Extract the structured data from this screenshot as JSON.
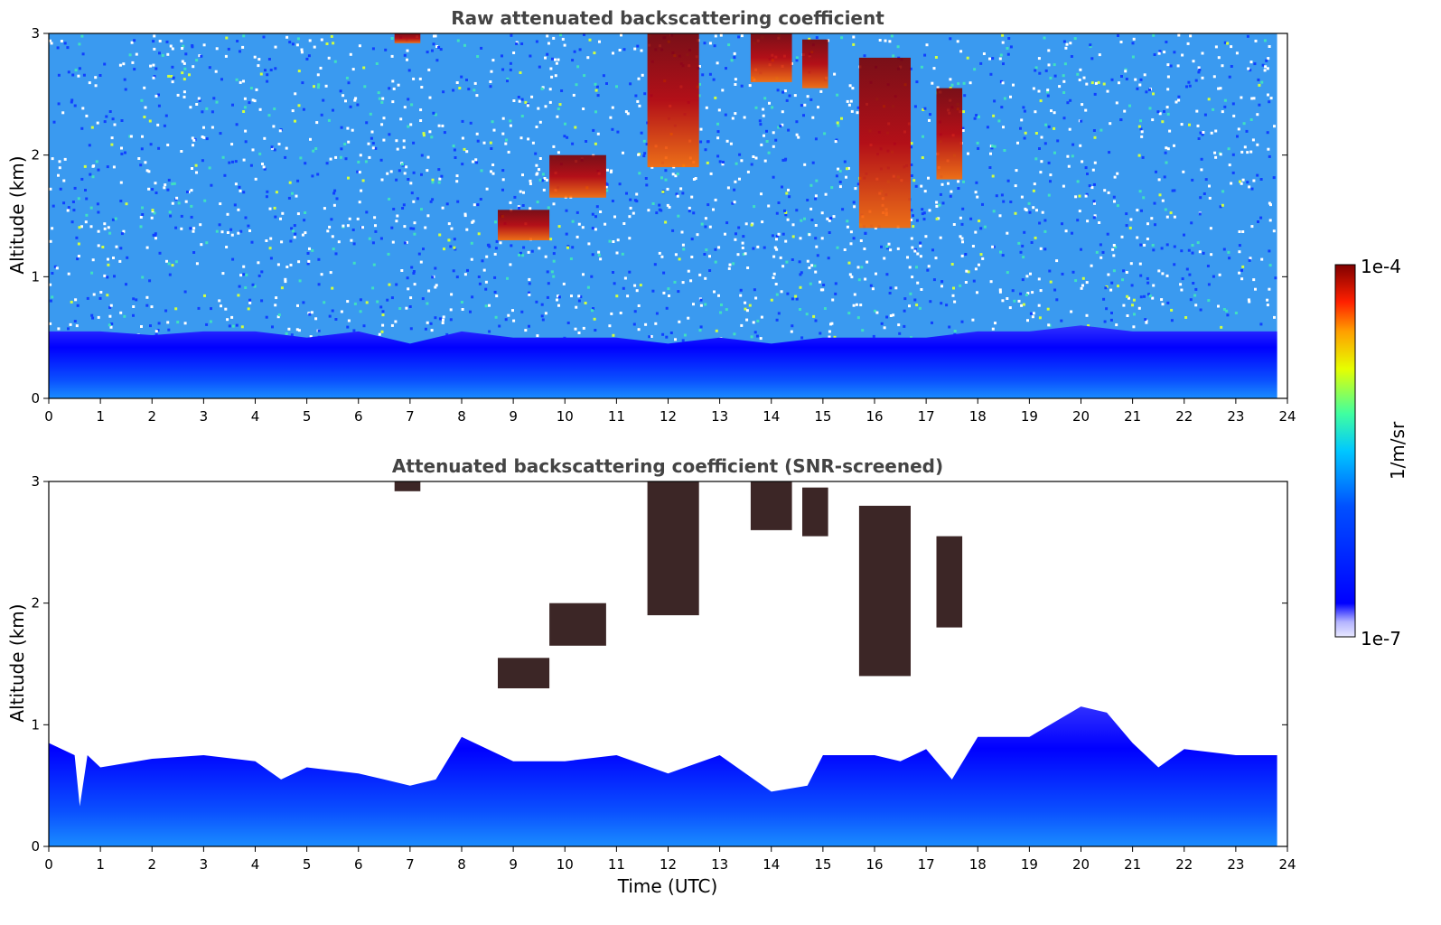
{
  "chart_data": [
    {
      "type": "heatmap",
      "title": "Raw attenuated backscattering coefficient",
      "xlabel": "",
      "ylabel": "Altitude (km)",
      "xlim": [
        0,
        24
      ],
      "ylim": [
        0,
        3
      ],
      "x_ticks": [
        "0",
        "1",
        "2",
        "3",
        "4",
        "5",
        "6",
        "7",
        "8",
        "9",
        "10",
        "11",
        "12",
        "13",
        "14",
        "15",
        "16",
        "17",
        "18",
        "19",
        "20",
        "21",
        "22",
        "23",
        "24"
      ],
      "y_ticks": [
        "0",
        "1",
        "2",
        "3"
      ],
      "data_coverage_x": [
        0,
        23.8
      ],
      "boundary_layer_top_km": [
        [
          0,
          0.55
        ],
        [
          1,
          0.55
        ],
        [
          2,
          0.52
        ],
        [
          3,
          0.55
        ],
        [
          4,
          0.55
        ],
        [
          5,
          0.5
        ],
        [
          6,
          0.55
        ],
        [
          7,
          0.45
        ],
        [
          8,
          0.55
        ],
        [
          9,
          0.5
        ],
        [
          10,
          0.5
        ],
        [
          11,
          0.5
        ],
        [
          12,
          0.45
        ],
        [
          13,
          0.5
        ],
        [
          14,
          0.45
        ],
        [
          15,
          0.5
        ],
        [
          16,
          0.5
        ],
        [
          17,
          0.5
        ],
        [
          18,
          0.55
        ],
        [
          19,
          0.55
        ],
        [
          20,
          0.6
        ],
        [
          21,
          0.55
        ],
        [
          22,
          0.55
        ],
        [
          23,
          0.55
        ],
        [
          23.8,
          0.55
        ]
      ],
      "cloud_features": [
        {
          "t_start": 6.7,
          "t_end": 7.2,
          "alt_bottom_km": 2.92,
          "alt_top_km": 3.0
        },
        {
          "t_start": 8.7,
          "t_end": 9.7,
          "alt_bottom_km": 1.3,
          "alt_top_km": 1.55
        },
        {
          "t_start": 9.7,
          "t_end": 10.8,
          "alt_bottom_km": 1.65,
          "alt_top_km": 2.0
        },
        {
          "t_start": 11.6,
          "t_end": 12.6,
          "alt_bottom_km": 1.9,
          "alt_top_km": 3.0
        },
        {
          "t_start": 13.6,
          "t_end": 14.4,
          "alt_bottom_km": 2.6,
          "alt_top_km": 3.0
        },
        {
          "t_start": 14.6,
          "t_end": 15.1,
          "alt_bottom_km": 2.55,
          "alt_top_km": 2.95
        },
        {
          "t_start": 15.7,
          "t_end": 16.7,
          "alt_bottom_km": 1.4,
          "alt_top_km": 2.8
        },
        {
          "t_start": 17.2,
          "t_end": 17.7,
          "alt_bottom_km": 1.8,
          "alt_top_km": 2.55
        }
      ]
    },
    {
      "type": "heatmap",
      "title": "Attenuated backscattering coefficient (SNR-screened)",
      "xlabel": "Time (UTC)",
      "ylabel": "Altitude (km)",
      "xlim": [
        0,
        24
      ],
      "ylim": [
        0,
        3
      ],
      "x_ticks": [
        "0",
        "1",
        "2",
        "3",
        "4",
        "5",
        "6",
        "7",
        "8",
        "9",
        "10",
        "11",
        "12",
        "13",
        "14",
        "15",
        "16",
        "17",
        "18",
        "19",
        "20",
        "21",
        "22",
        "23",
        "24"
      ],
      "y_ticks": [
        "0",
        "1",
        "2",
        "3"
      ],
      "data_coverage_x": [
        0,
        23.8
      ],
      "boundary_layer_top_km": [
        [
          0,
          0.85
        ],
        [
          0.5,
          0.75
        ],
        [
          0.6,
          0.33
        ],
        [
          0.75,
          0.75
        ],
        [
          1,
          0.65
        ],
        [
          2,
          0.72
        ],
        [
          3,
          0.75
        ],
        [
          4,
          0.7
        ],
        [
          4.5,
          0.55
        ],
        [
          5,
          0.65
        ],
        [
          6,
          0.6
        ],
        [
          6.5,
          0.55
        ],
        [
          7,
          0.5
        ],
        [
          7.5,
          0.55
        ],
        [
          8,
          0.9
        ],
        [
          9,
          0.7
        ],
        [
          10,
          0.7
        ],
        [
          11,
          0.75
        ],
        [
          12,
          0.6
        ],
        [
          13,
          0.75
        ],
        [
          14,
          0.45
        ],
        [
          14.7,
          0.5
        ],
        [
          15,
          0.75
        ],
        [
          16,
          0.75
        ],
        [
          16.5,
          0.7
        ],
        [
          17,
          0.8
        ],
        [
          17.5,
          0.55
        ],
        [
          18,
          0.9
        ],
        [
          19,
          0.9
        ],
        [
          20,
          1.15
        ],
        [
          20.5,
          1.1
        ],
        [
          21,
          0.85
        ],
        [
          21.5,
          0.65
        ],
        [
          22,
          0.8
        ],
        [
          23,
          0.75
        ],
        [
          23.8,
          0.75
        ]
      ],
      "cloud_features": [
        {
          "t_start": 6.7,
          "t_end": 7.2,
          "alt_bottom_km": 2.92,
          "alt_top_km": 3.0
        },
        {
          "t_start": 8.7,
          "t_end": 9.7,
          "alt_bottom_km": 1.3,
          "alt_top_km": 1.55
        },
        {
          "t_start": 9.7,
          "t_end": 10.8,
          "alt_bottom_km": 1.65,
          "alt_top_km": 2.0
        },
        {
          "t_start": 11.6,
          "t_end": 12.6,
          "alt_bottom_km": 1.9,
          "alt_top_km": 3.0
        },
        {
          "t_start": 13.6,
          "t_end": 14.4,
          "alt_bottom_km": 2.6,
          "alt_top_km": 3.0
        },
        {
          "t_start": 14.6,
          "t_end": 15.1,
          "alt_bottom_km": 2.55,
          "alt_top_km": 2.95
        },
        {
          "t_start": 15.7,
          "t_end": 16.7,
          "alt_bottom_km": 1.4,
          "alt_top_km": 2.8
        },
        {
          "t_start": 17.2,
          "t_end": 17.7,
          "alt_bottom_km": 1.8,
          "alt_top_km": 2.55
        }
      ]
    }
  ],
  "colorbar": {
    "label": "1/m/sr",
    "max_label": "1e-4",
    "min_label": "1e-7",
    "colors": [
      "#e8e8ff",
      "#b4b4ff",
      "#0000ff",
      "#0040ff",
      "#00a0ff",
      "#00e6e6",
      "#40ff80",
      "#c0ff00",
      "#ffff00",
      "#ffa000",
      "#ff3000",
      "#c00000",
      "#800000"
    ]
  }
}
